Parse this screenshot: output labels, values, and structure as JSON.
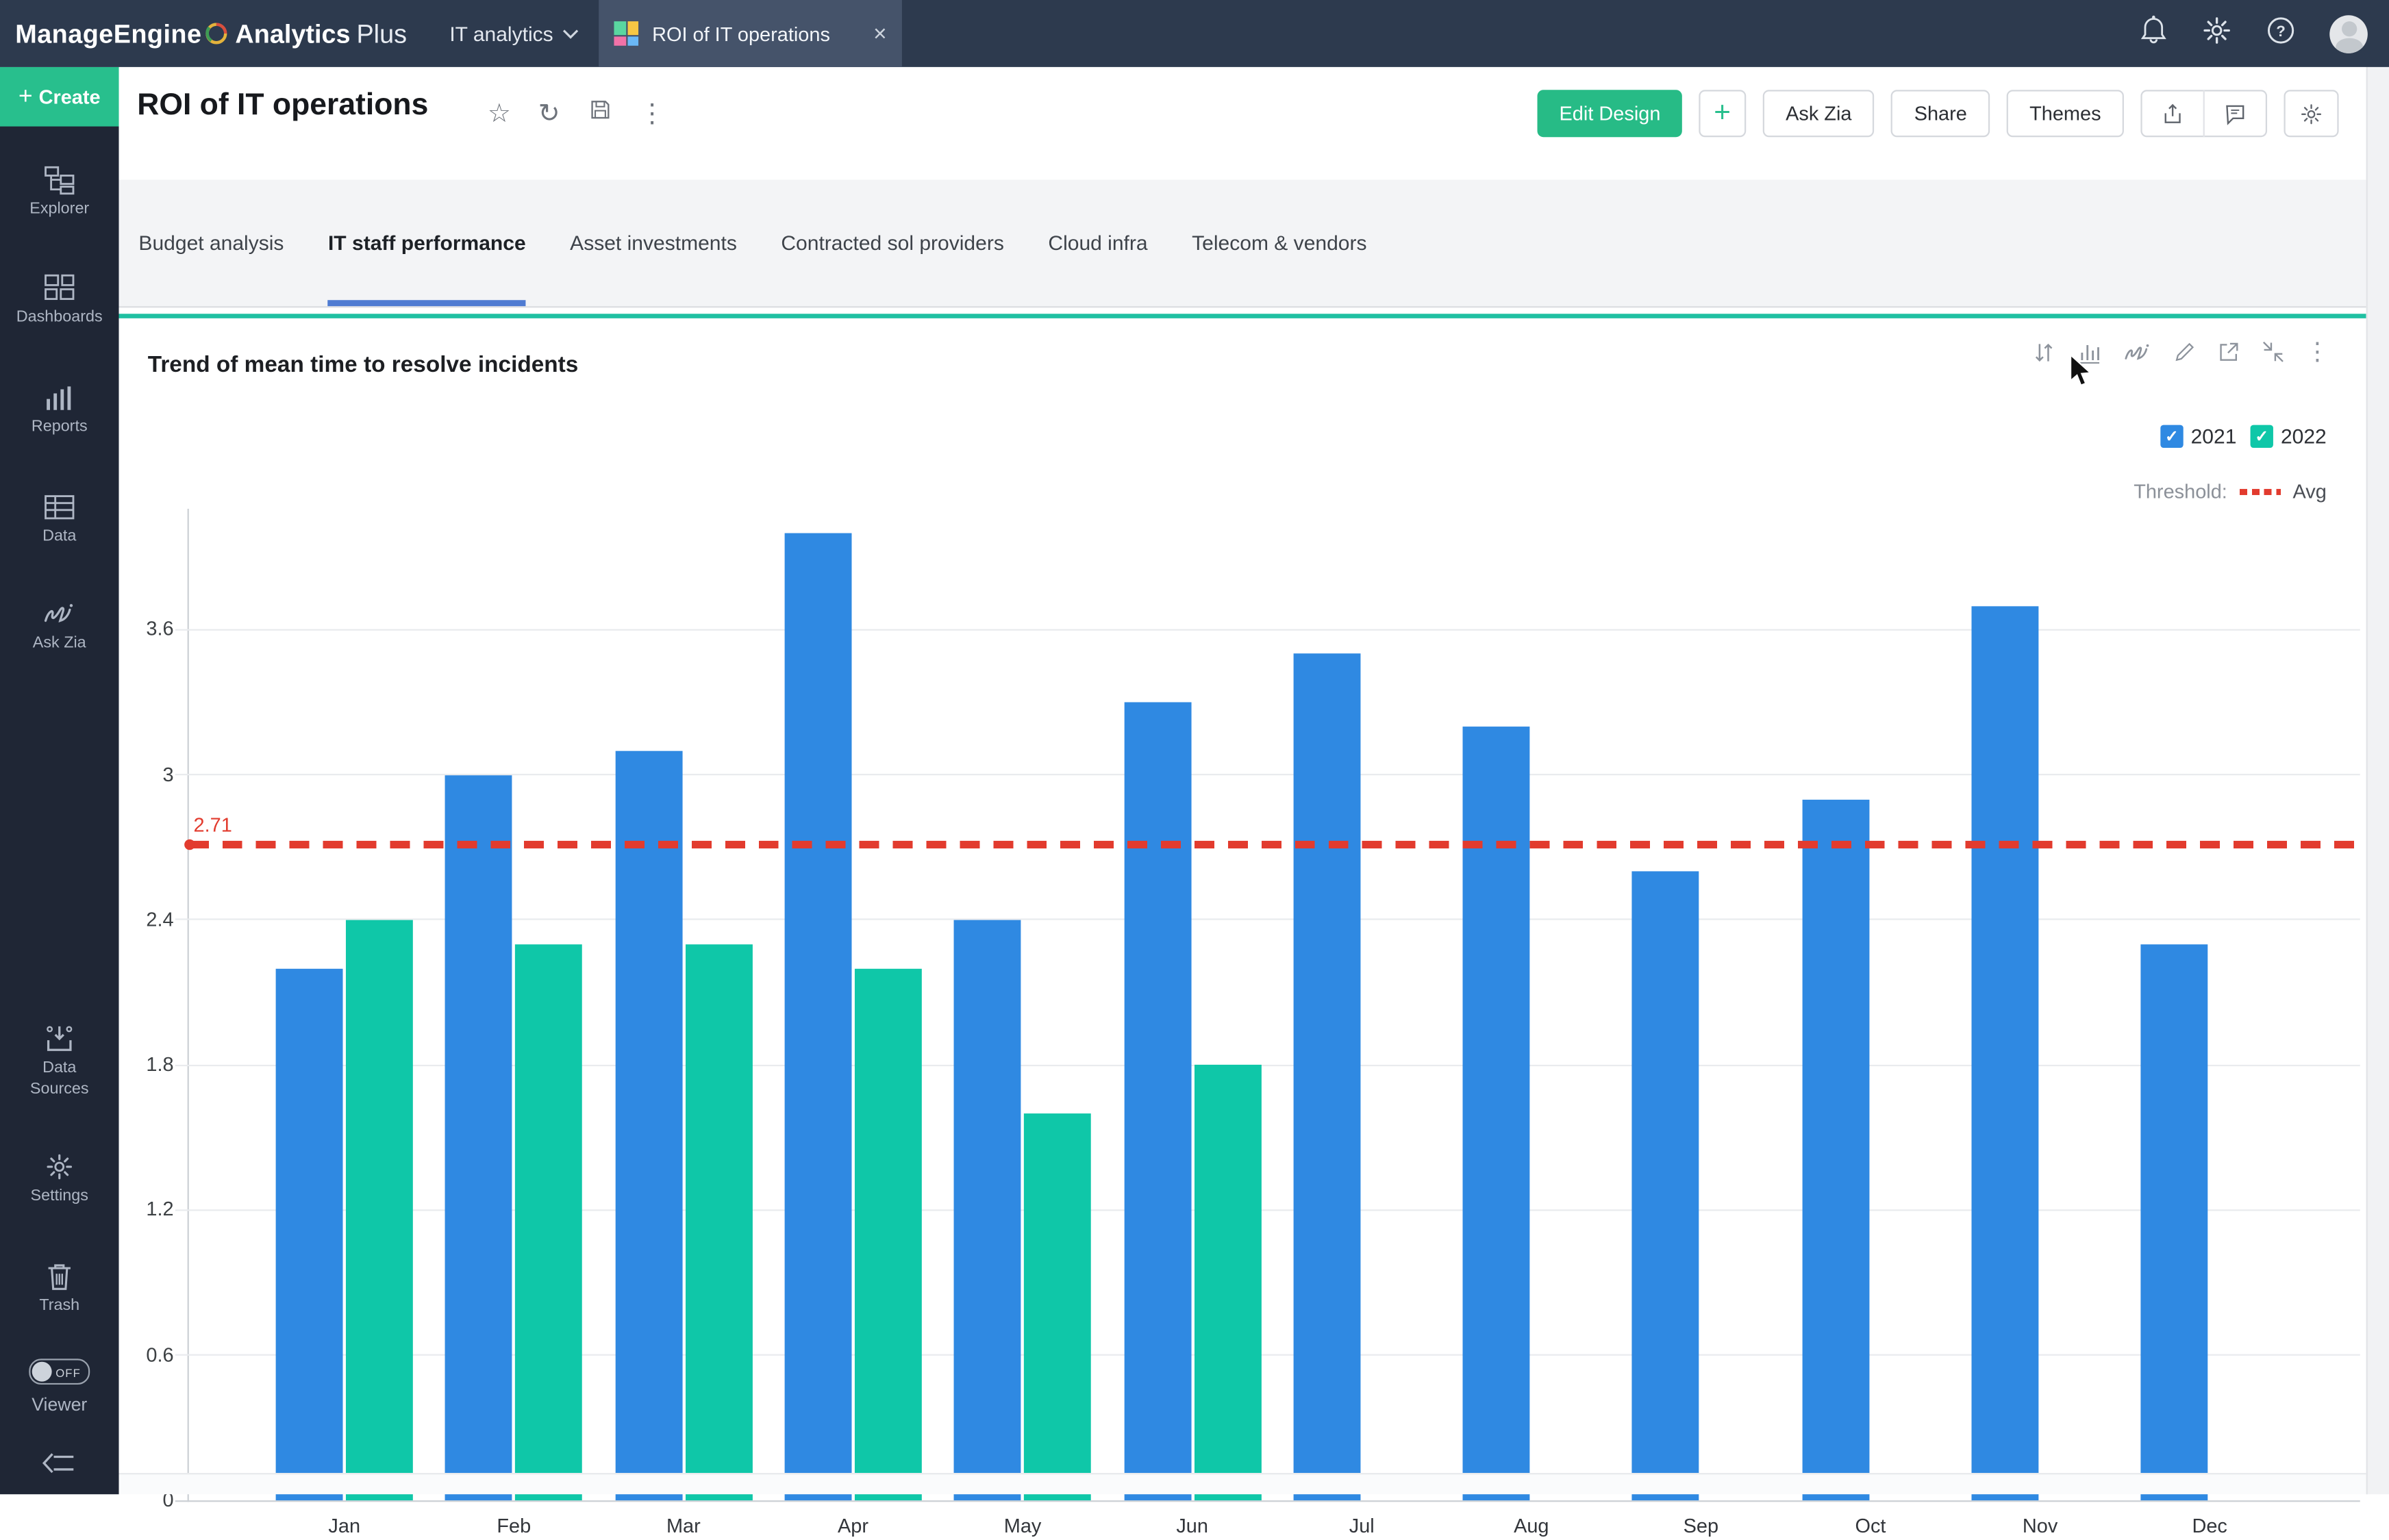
{
  "topbar": {
    "brand_manage": "ManageEngine",
    "brand_analytics": "Analytics",
    "brand_plus": "Plus",
    "workspace_label": "IT analytics",
    "tab_title": "ROI of IT operations",
    "close_glyph": "×"
  },
  "sidebar": {
    "create_label": "Create",
    "create_plus": "+",
    "items": [
      {
        "id": "explorer",
        "label": "Explorer"
      },
      {
        "id": "dashboards",
        "label": "Dashboards"
      },
      {
        "id": "reports",
        "label": "Reports"
      },
      {
        "id": "data",
        "label": "Data"
      },
      {
        "id": "ask-zia",
        "label": "Ask Zia"
      }
    ],
    "bottom_items": [
      {
        "id": "data-sources",
        "label": "Data Sources"
      },
      {
        "id": "settings",
        "label": "Settings"
      },
      {
        "id": "trash",
        "label": "Trash"
      }
    ],
    "viewer_toggle": {
      "state": "OFF",
      "label": "Viewer"
    }
  },
  "header": {
    "title": "ROI of IT operations",
    "star_glyph": "☆",
    "refresh_glyph": "↻",
    "kebab_glyph": "⋮",
    "buttons": {
      "edit_design": "Edit Design",
      "add": "+",
      "ask_zia": "Ask Zia",
      "share": "Share",
      "themes": "Themes"
    }
  },
  "tabs": {
    "active": "IT staff performance",
    "items": [
      "Budget analysis",
      "IT staff performance",
      "Asset investments",
      "Contracted sol providers",
      "Cloud infra",
      "Telecom & vendors"
    ]
  },
  "chart_data": {
    "type": "bar",
    "title": "Trend of mean time to resolve incidents",
    "categories": [
      "Jan",
      "Feb",
      "Mar",
      "Apr",
      "May",
      "Jun",
      "Jul",
      "Aug",
      "Sep",
      "Oct",
      "Nov",
      "Dec"
    ],
    "series": [
      {
        "name": "2021",
        "color": "#2f89e2",
        "checked": true,
        "values": [
          2.2,
          3,
          3.1,
          4,
          2.4,
          3.3,
          3.5,
          3.2,
          2.6,
          2.9,
          3.7,
          2.3
        ]
      },
      {
        "name": "2022",
        "color": "#0fc7a8",
        "checked": true,
        "values": [
          2.4,
          2.3,
          2.3,
          2.2,
          1.6,
          1.8,
          null,
          null,
          null,
          null,
          null,
          null
        ]
      }
    ],
    "threshold": {
      "label_prefix": "Threshold:",
      "name": "Avg",
      "value": 2.71,
      "value_label": "2.71",
      "color": "#e23b2e"
    },
    "ylim": [
      0,
      4.1
    ],
    "yticks": [
      0,
      0.6,
      1.2,
      1.8,
      2.4,
      3,
      3.6
    ],
    "grid": true,
    "legend_position": "top-right",
    "xlabel": "",
    "ylabel": ""
  },
  "colors": {
    "accent_green": "#27bb86",
    "create_green": "#28bf8d",
    "tab_underline": "#4f7bd2",
    "panel_divider": "#1fc0a2",
    "bar_2021": "#2f89e2",
    "bar_2022": "#0fc7a8",
    "threshold_red": "#e23b2e"
  }
}
